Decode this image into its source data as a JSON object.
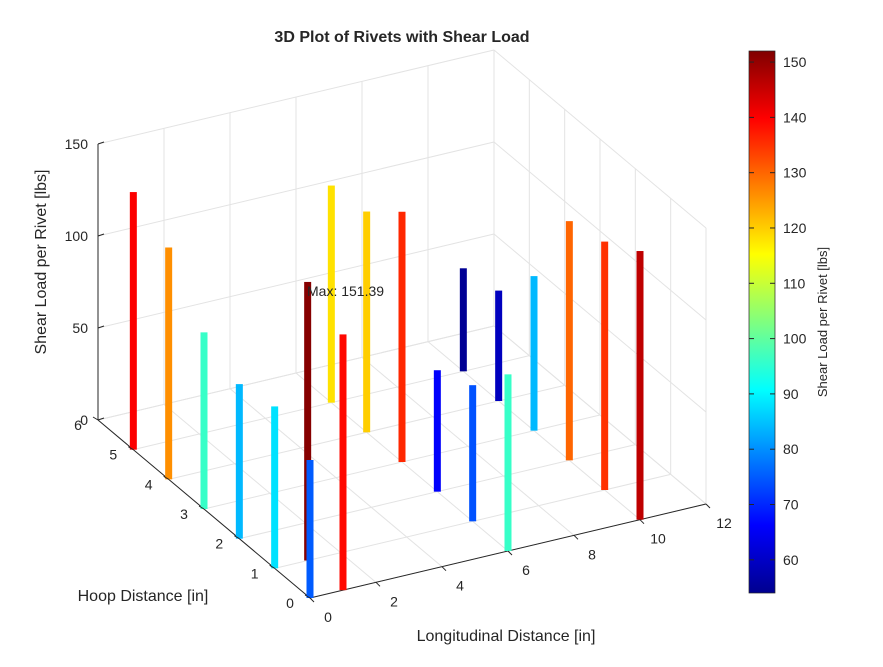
{
  "chart_data": {
    "type": "3d-stem",
    "title": "3D Plot of Rivets with Shear Load",
    "xlabel": "Longitudinal Distance [in]",
    "ylabel": "Hoop Distance [in]",
    "zlabel": "Shear Load per Rivet [lbs]",
    "colorbar_label": "Shear Load per Rivet [lbs]",
    "colormap": "jet",
    "clim": [
      54,
      152
    ],
    "xlim": [
      0,
      12
    ],
    "ylim": [
      0,
      6
    ],
    "zlim": [
      0,
      150
    ],
    "xticks": [
      "0",
      "2",
      "4",
      "6",
      "8",
      "10",
      "12"
    ],
    "yticks": [
      "0",
      "1",
      "2",
      "3",
      "4",
      "5",
      "6"
    ],
    "zticks": [
      "0",
      "50",
      "100",
      "150"
    ],
    "colorbar_ticks": [
      "60",
      "70",
      "80",
      "90",
      "100",
      "110",
      "120",
      "130",
      "140",
      "150"
    ],
    "annotation": "Max: 151.39",
    "grid": true,
    "rivets": [
      {
        "x": 0,
        "y": 5,
        "load": 140
      },
      {
        "x": 0,
        "y": 4,
        "load": 126
      },
      {
        "x": 0,
        "y": 3,
        "load": 96
      },
      {
        "x": 0,
        "y": 2,
        "load": 84
      },
      {
        "x": 0,
        "y": 1,
        "load": 88
      },
      {
        "x": 0,
        "y": 0,
        "load": 75
      },
      {
        "x": 1,
        "y": 1,
        "load": 151.39
      },
      {
        "x": 1,
        "y": 0,
        "load": 139
      },
      {
        "x": 6,
        "y": 5,
        "load": 118
      },
      {
        "x": 6,
        "y": 4,
        "load": 120
      },
      {
        "x": 6,
        "y": 3,
        "load": 136
      },
      {
        "x": 6,
        "y": 2,
        "load": 66
      },
      {
        "x": 6,
        "y": 1,
        "load": 74
      },
      {
        "x": 6,
        "y": 0,
        "load": 96
      },
      {
        "x": 10,
        "y": 5,
        "load": 56
      },
      {
        "x": 10,
        "y": 4,
        "load": 60
      },
      {
        "x": 10,
        "y": 3,
        "load": 84
      },
      {
        "x": 10,
        "y": 2,
        "load": 130
      },
      {
        "x": 10,
        "y": 1,
        "load": 135
      },
      {
        "x": 10,
        "y": 0,
        "load": 146
      }
    ]
  }
}
